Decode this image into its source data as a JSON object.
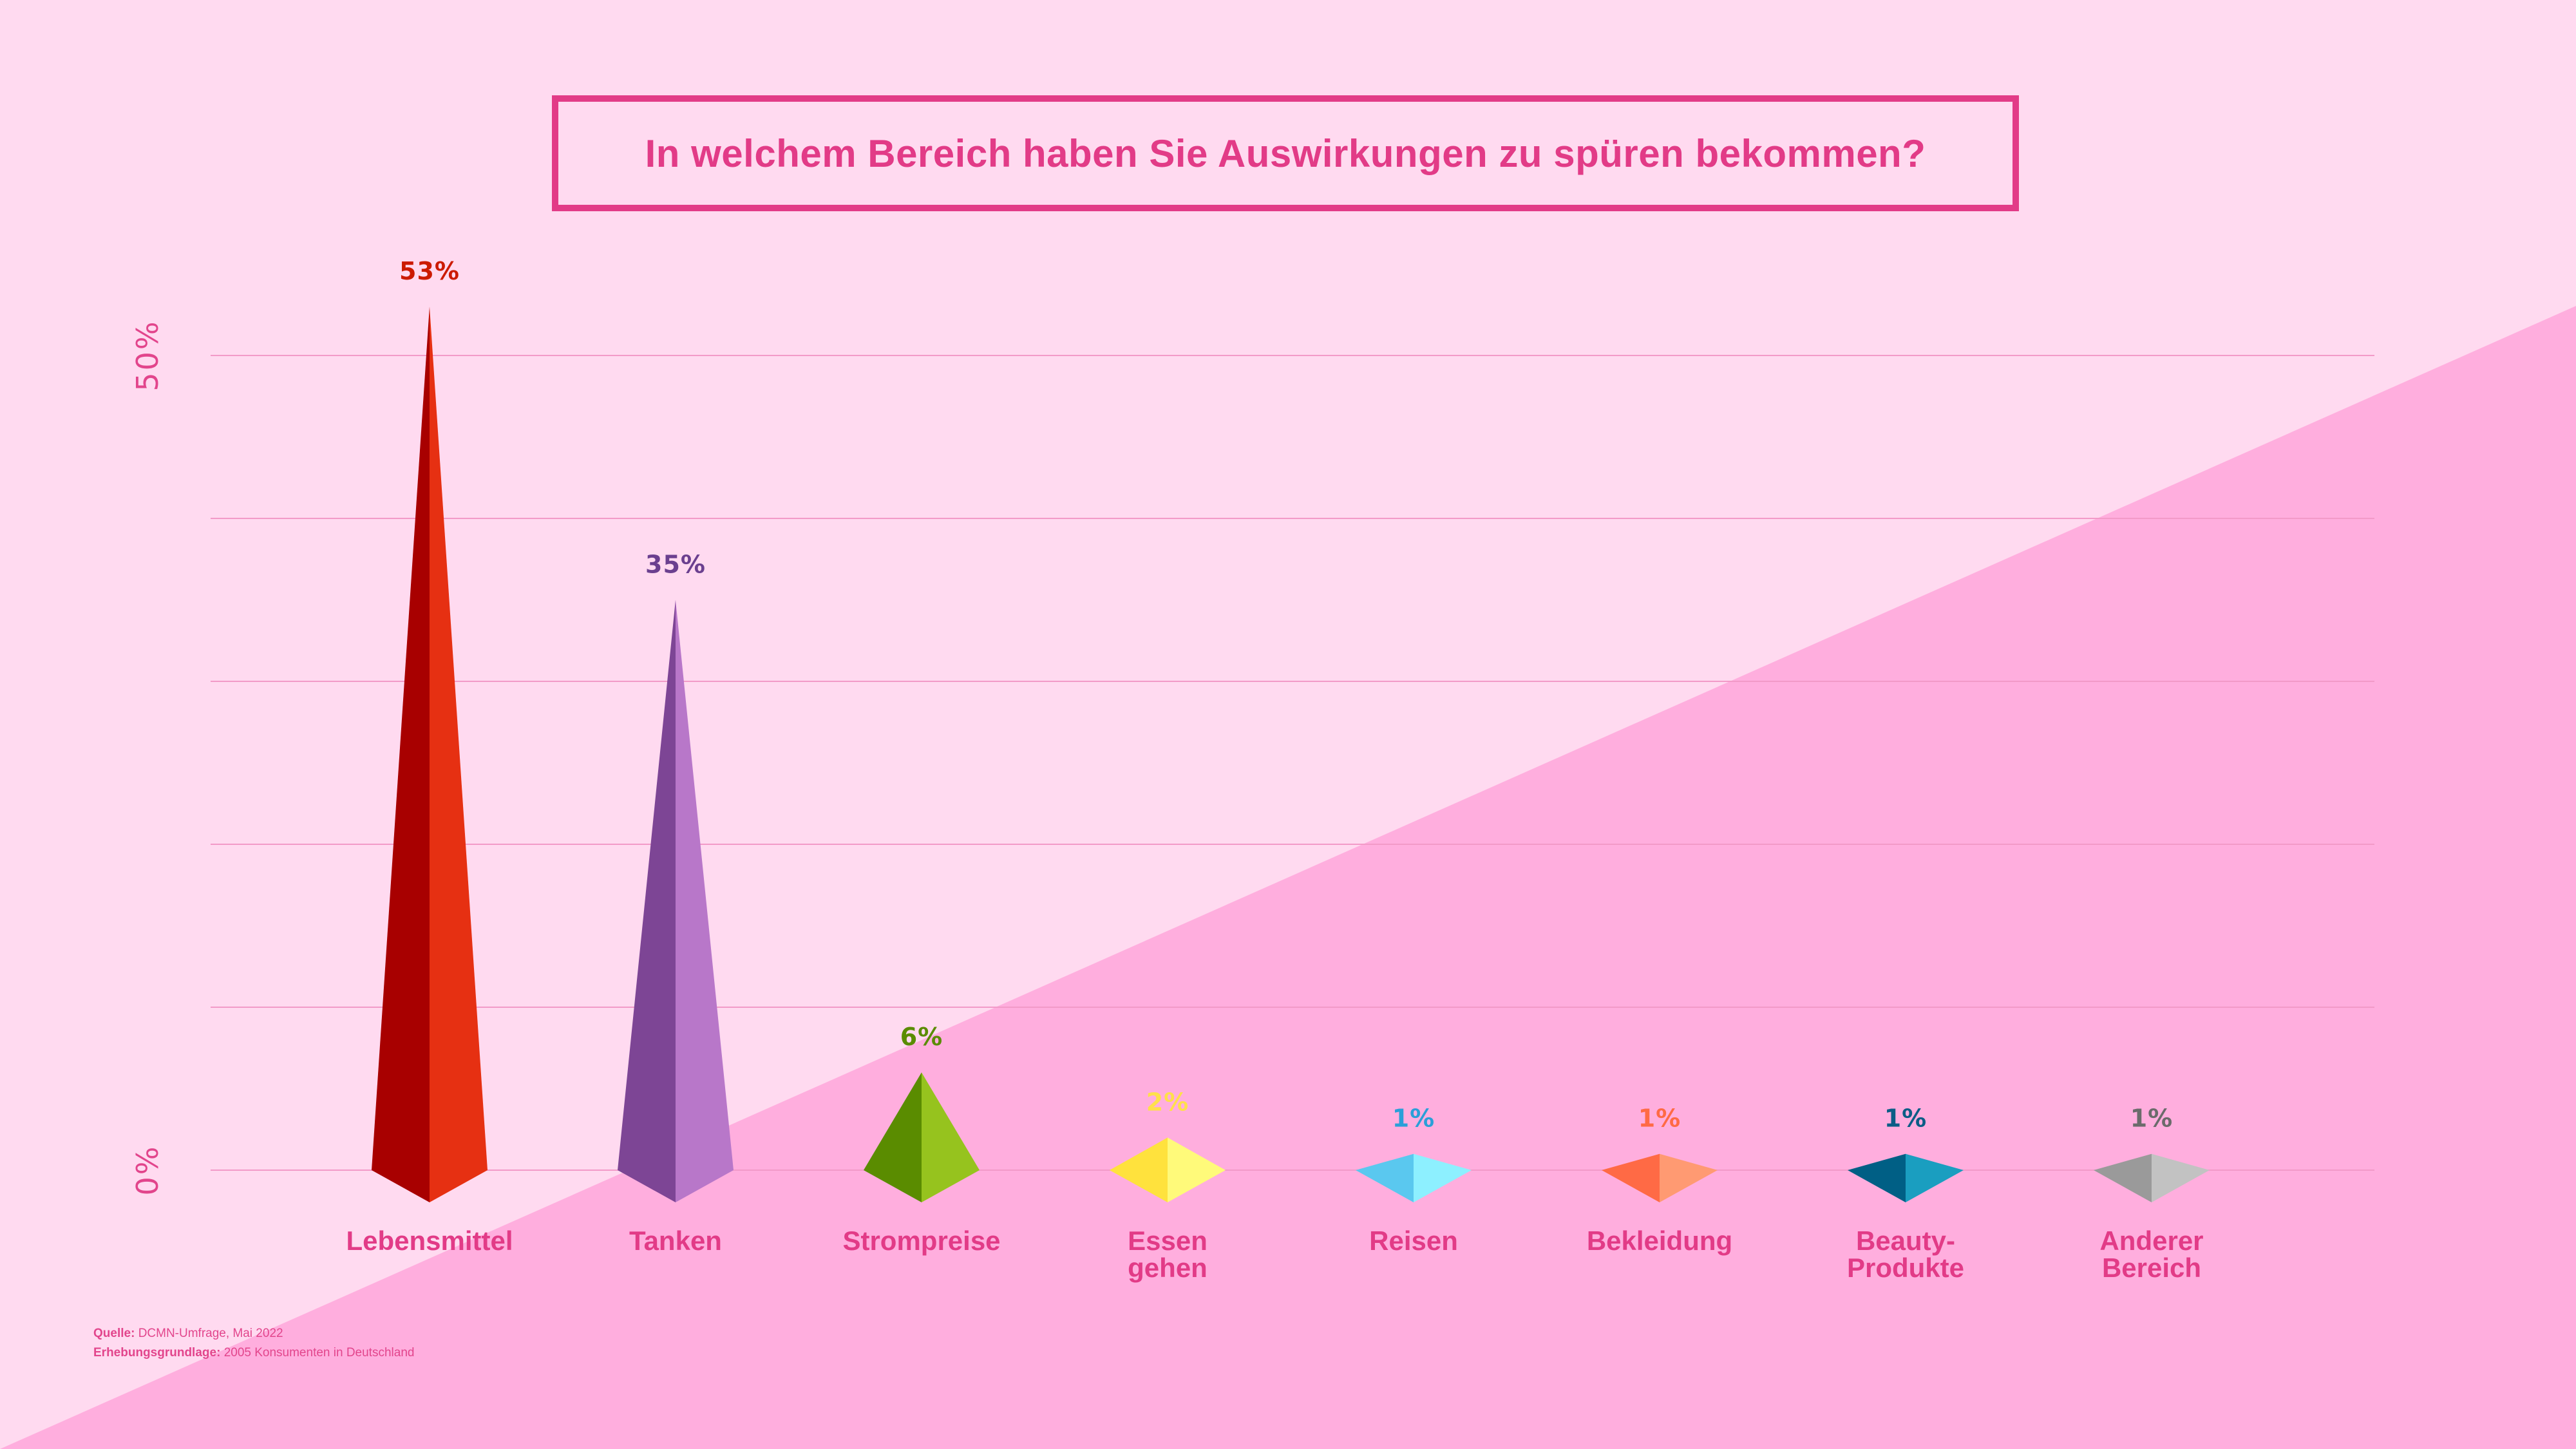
{
  "title": "In welchem Bereich haben Sie Auswirkungen zu spüren bekommen?",
  "colors": {
    "background_light": "#ffdaf0",
    "background_dark": "#ffaede",
    "accent": "#e23b87",
    "gridline": "#f29ac8"
  },
  "footer": {
    "source_label": "Quelle:",
    "source_text": "DCMN-Umfrage, Mai 2022",
    "basis_label": "Erhebungsgrundlage:",
    "basis_text": "2005 Konsumenten in Deutschland"
  },
  "chart_data": {
    "type": "bar",
    "title": "In welchem Bereich haben Sie Auswirkungen zu spüren bekommen?",
    "ylim": [
      0,
      55
    ],
    "yticks": [
      {
        "value": 0,
        "label": "0%"
      },
      {
        "value": 50,
        "label": "50%"
      }
    ],
    "grid_values": [
      0,
      10,
      20,
      30,
      40,
      50
    ],
    "grid": true,
    "categories": [
      {
        "label": [
          "Lebensmittel"
        ],
        "value": 53,
        "value_label": "53%",
        "color_dark": "#a80000",
        "color_light": "#e63012",
        "label_color": "#cc1a00"
      },
      {
        "label": [
          "Tanken"
        ],
        "value": 35,
        "value_label": "35%",
        "color_dark": "#7d4595",
        "color_light": "#b877c9",
        "label_color": "#6b3f8f"
      },
      {
        "label": [
          "Strompreise"
        ],
        "value": 6,
        "value_label": "6%",
        "color_dark": "#5a8c00",
        "color_light": "#96c31e",
        "label_color": "#5a8c00"
      },
      {
        "label": [
          "Essen",
          "gehen"
        ],
        "value": 2,
        "value_label": "2%",
        "color_dark": "#ffe23d",
        "color_light": "#fffa7a",
        "label_color": "#ffe04a"
      },
      {
        "label": [
          "Reisen"
        ],
        "value": 1,
        "value_label": "1%",
        "color_dark": "#5ac8ef",
        "color_light": "#8df0ff",
        "label_color": "#2a9fd8"
      },
      {
        "label": [
          "Bekleidung"
        ],
        "value": 1,
        "value_label": "1%",
        "color_dark": "#ff6a45",
        "color_light": "#ff9a72",
        "label_color": "#ff6a45"
      },
      {
        "label": [
          "Beauty-",
          "Produkte"
        ],
        "value": 1,
        "value_label": "1%",
        "color_dark": "#005f85",
        "color_light": "#1a9ec0",
        "label_color": "#0b5d86"
      },
      {
        "label": [
          "Anderer",
          "Bereich"
        ],
        "value": 1,
        "value_label": "1%",
        "color_dark": "#9a9a9a",
        "color_light": "#c2c2c2",
        "label_color": "#6b6b6b"
      }
    ]
  }
}
